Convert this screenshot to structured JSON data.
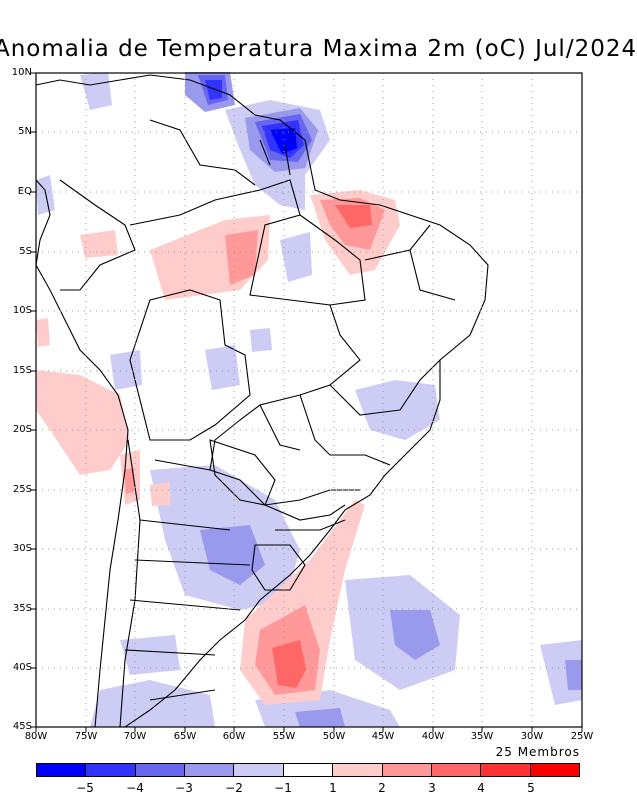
{
  "title": "Anomalia de Temperatura Maxima 2m (oC) Jul/2024",
  "members_label": "25 Membros",
  "lat_labels": [
    "10N",
    "5N",
    "EQ",
    "5S",
    "10S",
    "15S",
    "20S",
    "25S",
    "30S",
    "35S",
    "40S",
    "45S"
  ],
  "lon_labels": [
    "80W",
    "75W",
    "70W",
    "65W",
    "60W",
    "55W",
    "50W",
    "45W",
    "40W",
    "35W",
    "30W",
    "25W"
  ],
  "colorbar": {
    "labels": [
      "−5",
      "−4",
      "−3",
      "−2",
      "−1",
      "1",
      "2",
      "3",
      "4",
      "5"
    ],
    "colors": [
      "#0000ff",
      "#3333ff",
      "#6666ee",
      "#9999ee",
      "#ccccf5",
      "#ffffff",
      "#ffcccc",
      "#ff9999",
      "#ff6666",
      "#ff3333",
      "#ff0000"
    ]
  },
  "colors": {
    "cold_strong": "#0000ff",
    "cold_mid": "#6666ee",
    "cold_light": "#ccccf5",
    "warm_light": "#ffcccc",
    "warm_mid": "#ff9999",
    "warm_strong": "#ff3333"
  }
}
